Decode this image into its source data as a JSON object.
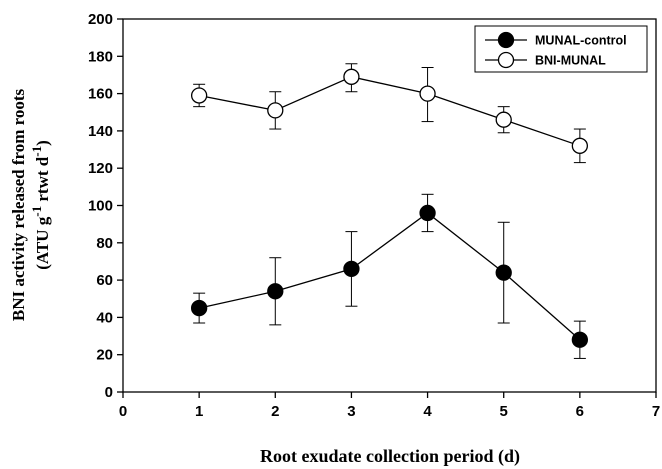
{
  "chart_data": {
    "type": "line",
    "xlabel": "Root exudate collection period (d)",
    "ylabel": {
      "line1": "BNI activity released from roots",
      "line2_prefix": "(ATU g",
      "line2_sup1": "-1",
      "line2_mid": " rtwt d",
      "line2_sup2": "-1",
      "line2_suffix": ")"
    },
    "xlim": [
      0,
      7
    ],
    "ylim": [
      0,
      200
    ],
    "x_ticks": [
      "0",
      "1",
      "2",
      "3",
      "4",
      "5",
      "6",
      "7"
    ],
    "y_ticks": [
      "0",
      "20",
      "40",
      "60",
      "80",
      "100",
      "120",
      "140",
      "160",
      "180",
      "200"
    ],
    "grid": false,
    "legend_position": "top-right",
    "x": [
      1,
      2,
      3,
      4,
      5,
      6
    ],
    "series": [
      {
        "name": "MUNAL-control",
        "marker": "filled-circle",
        "color": "#000000",
        "values": [
          45,
          54,
          66,
          96,
          64,
          28
        ],
        "err_low": [
          37,
          36,
          46,
          86,
          37,
          18
        ],
        "err_high": [
          53,
          72,
          86,
          106,
          91,
          38
        ]
      },
      {
        "name": "BNI-MUNAL",
        "marker": "open-circle",
        "color": "#000000",
        "values": [
          159,
          151,
          169,
          160,
          146,
          132
        ],
        "err_low": [
          153,
          141,
          161,
          145,
          139,
          123
        ],
        "err_high": [
          165,
          161,
          176,
          174,
          153,
          141
        ]
      }
    ]
  }
}
